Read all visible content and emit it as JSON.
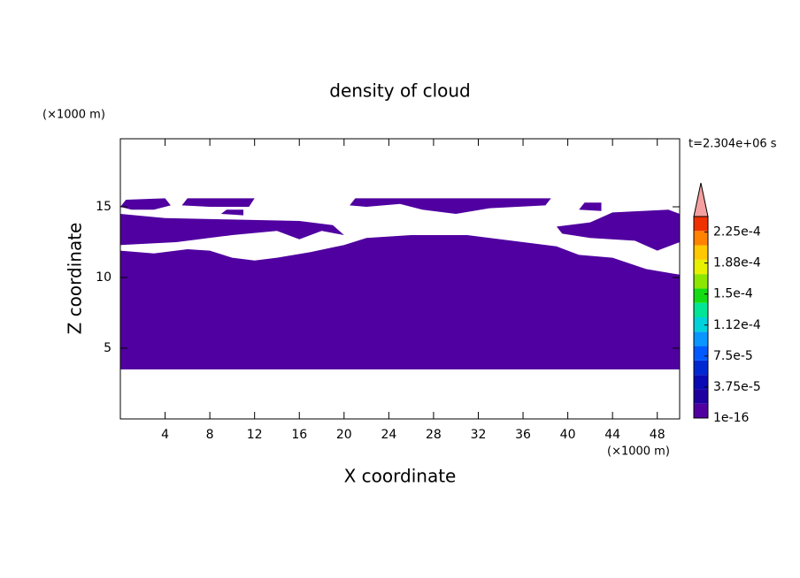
{
  "chart_data": {
    "type": "contour",
    "title": "density of cloud",
    "xlabel": "X coordinate",
    "ylabel": "Z coordinate",
    "xunit": "(×1000 m)",
    "yunit": "(×1000 m)",
    "annotation": "t=2.304e+06 s",
    "xlim": [
      0,
      50
    ],
    "ylim": [
      0,
      20
    ],
    "xticks": [
      4,
      8,
      12,
      16,
      20,
      24,
      28,
      32,
      36,
      40,
      44,
      48
    ],
    "yticks": [
      5,
      10,
      15
    ],
    "colorbar": {
      "clim": [
        0,
        0.00024375
      ],
      "colors": [
        "#5000a0",
        "#1e00a0",
        "#0a0ab4",
        "#0028d2",
        "#005aff",
        "#0a96ff",
        "#00d2dc",
        "#00e696",
        "#14dc14",
        "#8ce600",
        "#e6f000",
        "#ffc800",
        "#ff8200",
        "#f03200"
      ],
      "extend_color": "#f5a0a0",
      "ticks": [
        1e-16,
        {
          "value": 3.75e-05,
          "label": "3.75e-5"
        },
        {
          "value": 7.5e-05,
          "label": "7.5e-5"
        },
        {
          "value": 0.0001125,
          "label": "1.12e-4"
        },
        {
          "value": 0.00015,
          "label": "1.5e-4"
        },
        {
          "value": 0.0001875,
          "label": "1.88e-4"
        },
        {
          "value": 0.000225,
          "label": "2.25e-4"
        }
      ]
    },
    "regions": [
      {
        "value": 1e-16,
        "points": [
          [
            0,
            3.5
          ],
          [
            50,
            3.5
          ],
          [
            50,
            10.2
          ],
          [
            47,
            10.6
          ],
          [
            44,
            11.4
          ],
          [
            41,
            11.6
          ],
          [
            39,
            12.2
          ],
          [
            35,
            12.6
          ],
          [
            31,
            13.0
          ],
          [
            26,
            13.0
          ],
          [
            22,
            12.8
          ],
          [
            20,
            12.3
          ],
          [
            17,
            11.8
          ],
          [
            14,
            11.4
          ],
          [
            12,
            11.2
          ],
          [
            10,
            11.4
          ],
          [
            8,
            11.9
          ],
          [
            6,
            12.0
          ],
          [
            3,
            11.7
          ],
          [
            0,
            11.9
          ]
        ]
      },
      {
        "value": 1e-16,
        "points": [
          [
            0,
            12.3
          ],
          [
            5,
            12.5
          ],
          [
            10,
            13.0
          ],
          [
            14,
            13.3
          ],
          [
            16,
            12.7
          ],
          [
            18,
            13.3
          ],
          [
            20,
            13.0
          ],
          [
            19,
            13.7
          ],
          [
            16,
            14.0
          ],
          [
            10,
            14.1
          ],
          [
            4,
            14.2
          ],
          [
            0,
            14.5
          ]
        ]
      },
      {
        "value": 1e-16,
        "points": [
          [
            39,
            13.6
          ],
          [
            42,
            13.9
          ],
          [
            44,
            14.6
          ],
          [
            49,
            14.8
          ],
          [
            50,
            14.5
          ],
          [
            50,
            12.5
          ],
          [
            48,
            11.9
          ],
          [
            46,
            12.6
          ],
          [
            42,
            12.8
          ],
          [
            39.5,
            13.1
          ]
        ]
      },
      {
        "value": 1e-16,
        "points": [
          [
            0,
            15.0
          ],
          [
            0.5,
            15.5
          ],
          [
            4,
            15.6
          ],
          [
            4.5,
            15.1
          ],
          [
            3,
            14.8
          ],
          [
            1,
            14.8
          ]
        ]
      },
      {
        "value": 1e-16,
        "points": [
          [
            5.5,
            15.1
          ],
          [
            6,
            15.6
          ],
          [
            12,
            15.6
          ],
          [
            11.5,
            15.0
          ],
          [
            8,
            15.0
          ]
        ]
      },
      {
        "value": 1e-16,
        "points": [
          [
            20.5,
            15.1
          ],
          [
            21,
            15.6
          ],
          [
            38.5,
            15.6
          ],
          [
            38,
            15.1
          ],
          [
            33,
            14.9
          ],
          [
            30,
            14.5
          ],
          [
            27,
            14.8
          ],
          [
            25,
            15.2
          ],
          [
            22,
            15.0
          ]
        ]
      },
      {
        "value": 1e-16,
        "points": [
          [
            41,
            14.8
          ],
          [
            41.5,
            15.3
          ],
          [
            43,
            15.3
          ],
          [
            43,
            14.7
          ]
        ]
      },
      {
        "value": 1e-16,
        "points": [
          [
            9,
            14.5
          ],
          [
            9.5,
            14.8
          ],
          [
            11,
            14.8
          ],
          [
            11,
            14.4
          ]
        ]
      }
    ]
  }
}
